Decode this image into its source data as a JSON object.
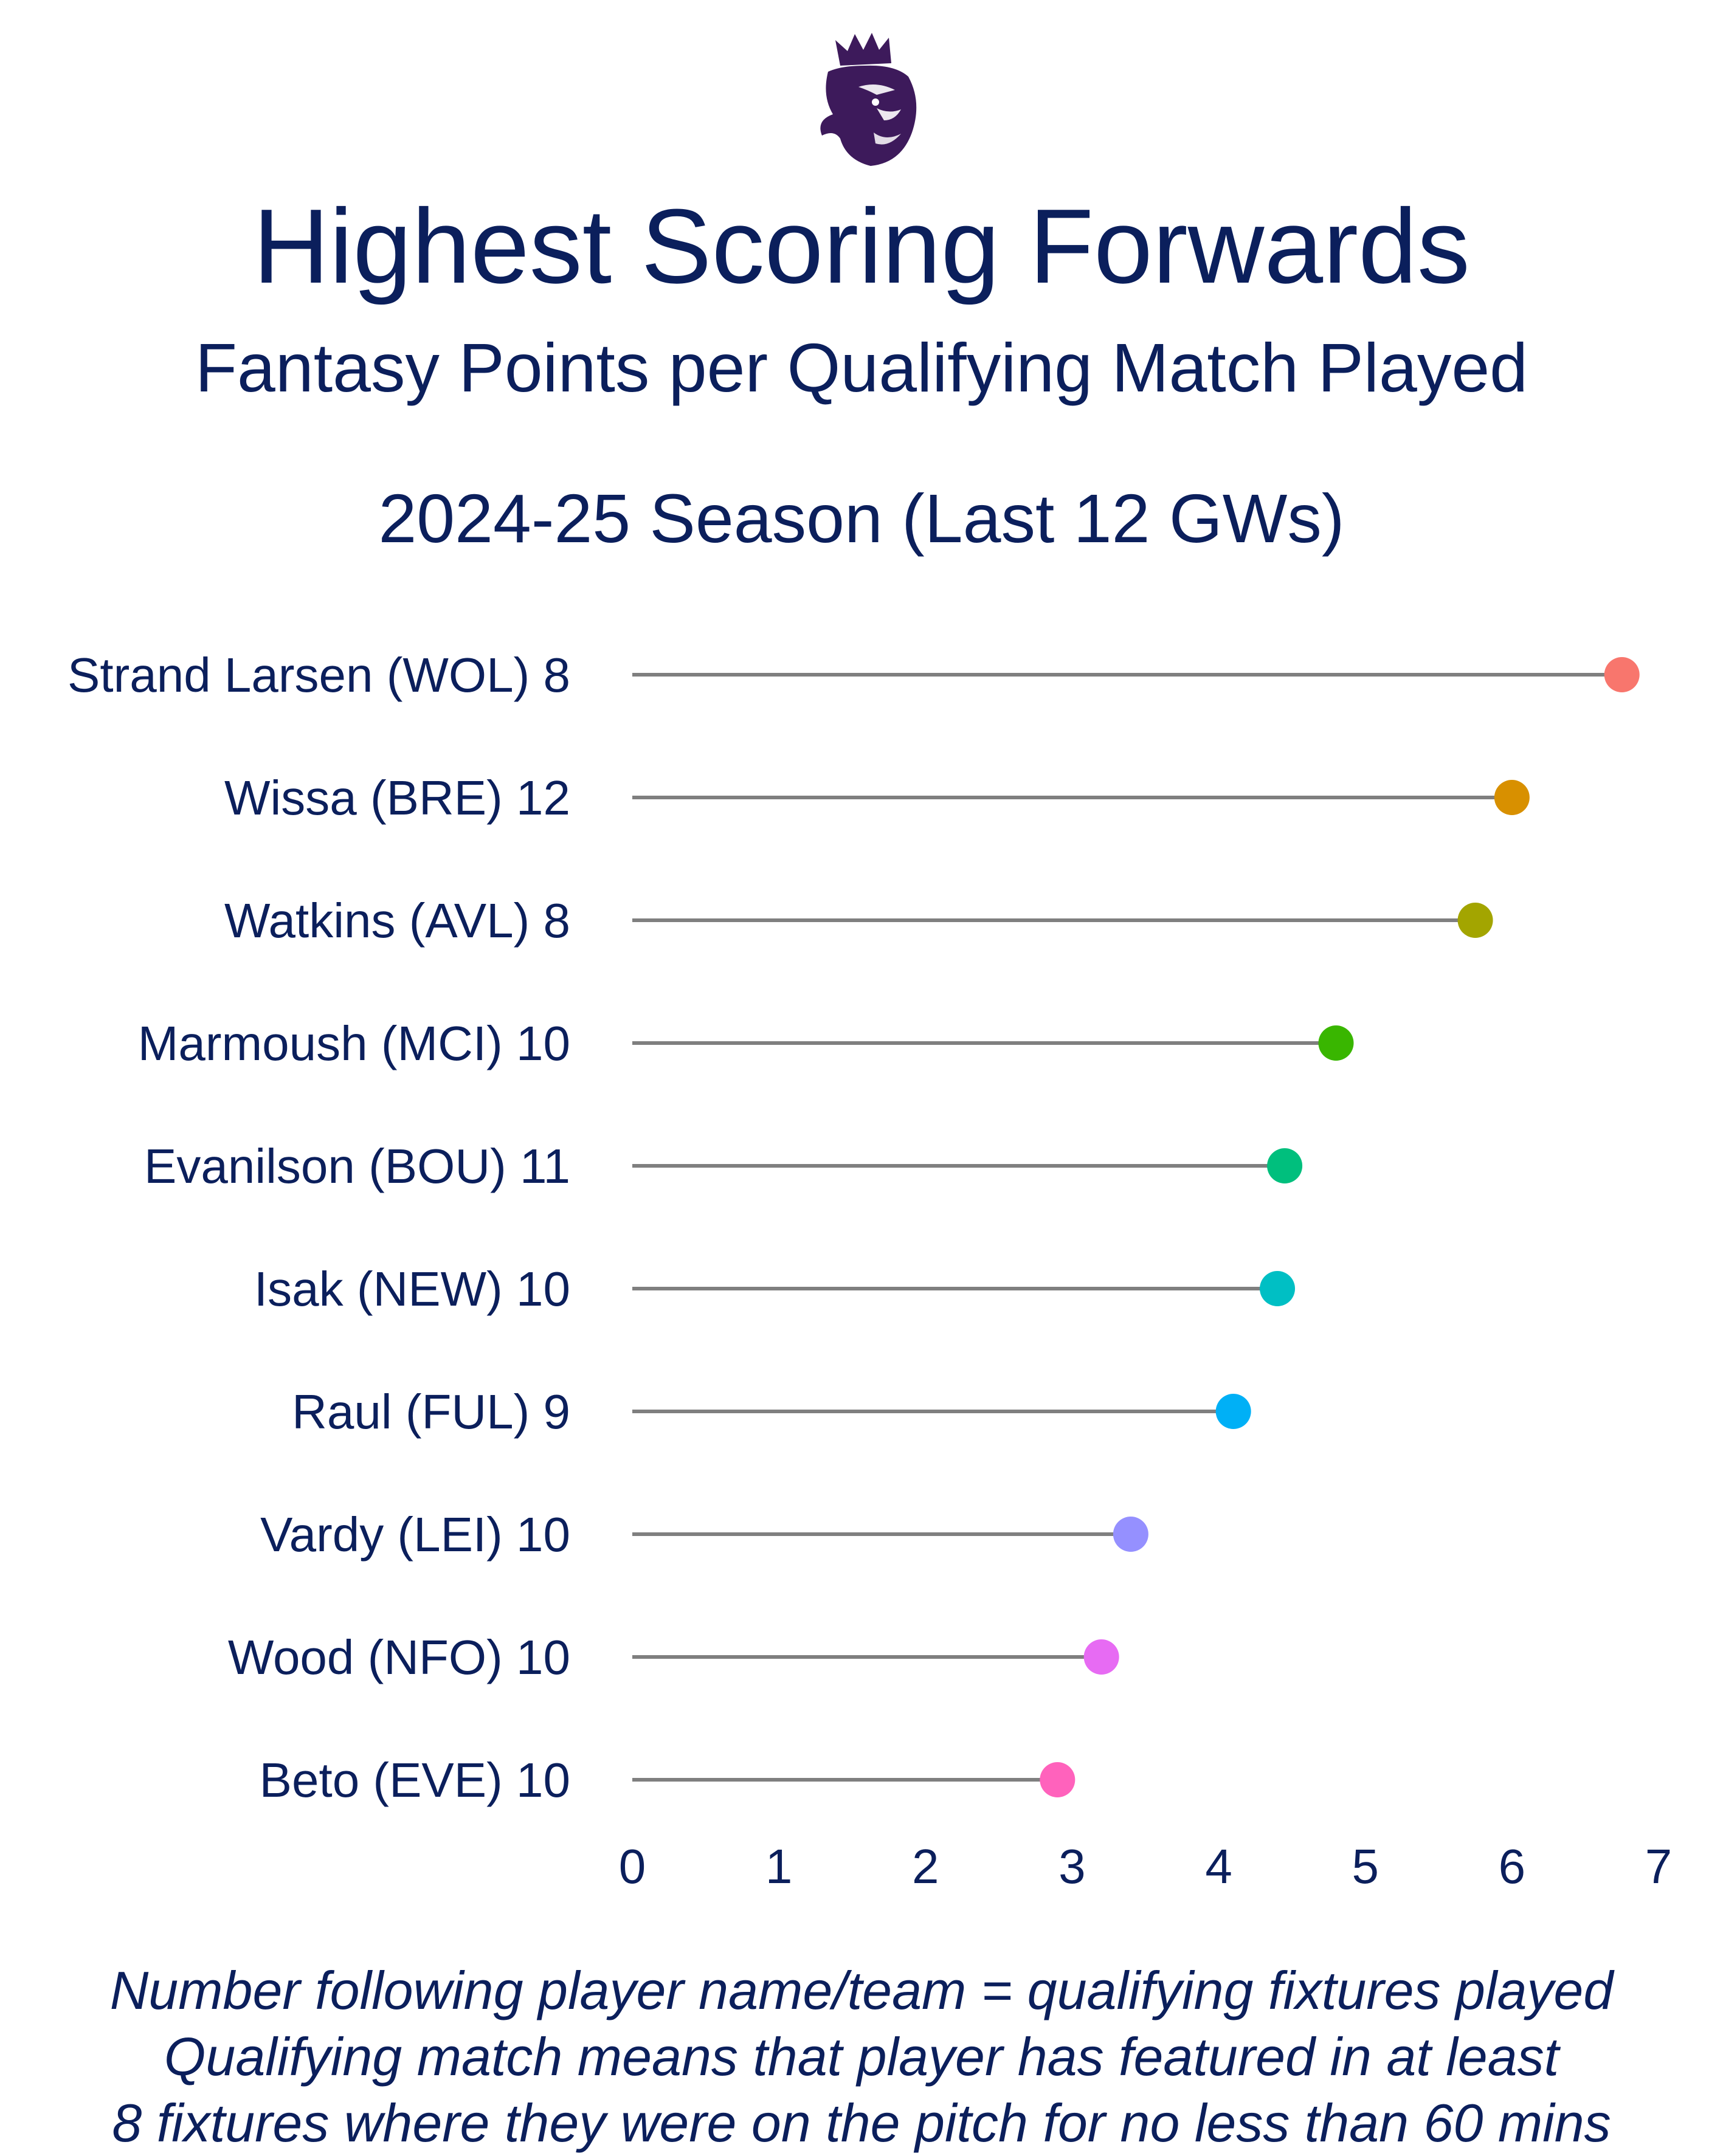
{
  "header": {
    "logo_icon": "premier-league-lion-icon",
    "title": "Highest Scoring Forwards",
    "subtitle": "Fantasy Points per Qualifying Match Played",
    "season": "2024-25 Season (Last 12 GWs)"
  },
  "chart_data": {
    "type": "lollipop",
    "orientation": "horizontal",
    "categories": [
      "Strand Larsen (WOL) 8",
      "Wissa (BRE) 12",
      "Watkins (AVL) 8",
      "Marmoush (MCI) 10",
      "Evanilson (BOU) 11",
      "Isak (NEW) 10",
      "Raul (FUL) 9",
      "Vardy (LEI) 10",
      "Wood (NFO) 10",
      "Beto (EVE) 10"
    ],
    "values": [
      6.75,
      6.0,
      5.75,
      4.8,
      4.45,
      4.4,
      4.1,
      3.4,
      3.2,
      2.9
    ],
    "colors": [
      "#f8766d",
      "#d89000",
      "#a3a500",
      "#39b600",
      "#00bf7d",
      "#00bfc4",
      "#00b0f6",
      "#9590ff",
      "#e76bf3",
      "#ff62bc"
    ],
    "xlim": [
      0,
      7
    ],
    "xticks": [
      "0",
      "1",
      "2",
      "3",
      "4",
      "5",
      "6",
      "7"
    ],
    "stem_color": "#7f7f7f",
    "grid": false,
    "legend": "none",
    "xlabel": "",
    "ylabel": ""
  },
  "footnote": {
    "line1": "Number following player name/team = qualifying fixtures played",
    "line2": "Qualifying match means that player has featured in at least",
    "line3": "8 fixtures where they were on the pitch for no less than 60 mins"
  }
}
